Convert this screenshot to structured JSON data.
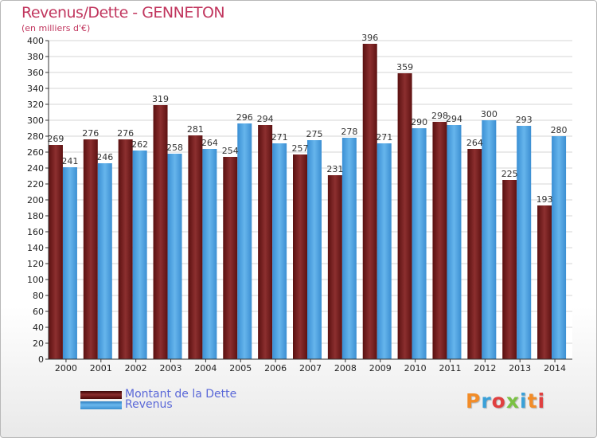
{
  "chart_data": {
    "type": "bar",
    "title": "Revenus/Dette - GENNETON",
    "subtitle": "(en milliers d'€)",
    "categories": [
      "2000",
      "2001",
      "2002",
      "2003",
      "2004",
      "2005",
      "2006",
      "2007",
      "2008",
      "2009",
      "2010",
      "2011",
      "2012",
      "2013",
      "2014"
    ],
    "series": [
      {
        "name": "Montant de la Dette",
        "color": "#7a1f1f",
        "values": [
          269,
          276,
          276,
          319,
          281,
          254,
          294,
          257,
          231,
          396,
          359,
          298,
          264,
          225,
          193
        ]
      },
      {
        "name": "Revenus",
        "color": "#4fa3e0",
        "values": [
          241,
          246,
          262,
          258,
          264,
          296,
          271,
          275,
          278,
          271,
          290,
          294,
          300,
          293,
          280
        ]
      }
    ],
    "ylim": [
      0,
      400
    ],
    "ytick_step": 20,
    "grid": true,
    "legend_position": "bottom-left"
  },
  "branding": {
    "logo_text": "Proxiti"
  }
}
